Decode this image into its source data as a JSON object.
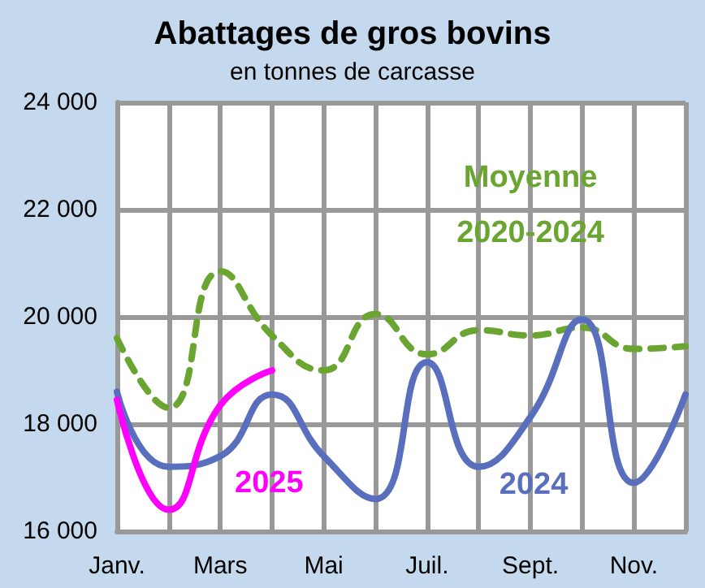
{
  "chart_data": {
    "type": "line",
    "title": "Abattages de gros bovins",
    "subtitle": "en tonnes de carcasse",
    "categories": [
      "Janv.",
      null,
      "Mars",
      null,
      "Mai",
      null,
      "Juil.",
      null,
      "Sept.",
      null,
      "Nov.",
      null
    ],
    "series": [
      {
        "name": "Moyenne 2020-2024",
        "color": "#6aa532",
        "line_style": "dashed",
        "values": [
          19600,
          18300,
          20850,
          19650,
          19000,
          20050,
          19300,
          19750,
          19650,
          19800,
          19400,
          19450
        ]
      },
      {
        "name": "2024",
        "color": "#5a6ebe",
        "line_style": "solid",
        "values": [
          18600,
          17200,
          17400,
          18550,
          17400,
          16600,
          19150,
          17200,
          18130,
          19950,
          16900,
          18550
        ]
      },
      {
        "name": "2025",
        "color": "#ff00ff",
        "line_style": "solid",
        "values": [
          18450,
          16400,
          18350,
          19000,
          null,
          null,
          null,
          null,
          null,
          null,
          null,
          null
        ]
      }
    ],
    "ylim": [
      16000,
      24000
    ],
    "yticks": [
      {
        "value": 16000,
        "label": "16 000"
      },
      {
        "value": 18000,
        "label": "18 000"
      },
      {
        "value": 20000,
        "label": "20 000"
      },
      {
        "value": 22000,
        "label": "22 000"
      },
      {
        "value": 24000,
        "label": "24 000"
      }
    ],
    "grid": true,
    "legend": false,
    "marker": "none"
  }
}
